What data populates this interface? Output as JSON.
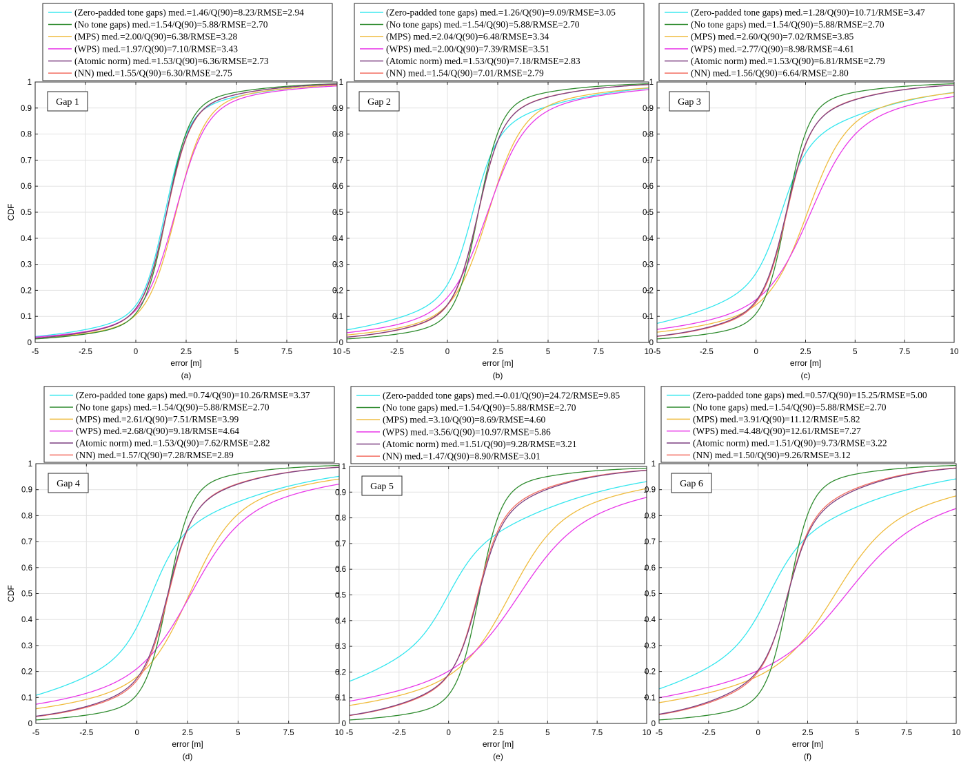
{
  "colors": {
    "zero_padded": "#33e6ee",
    "no_tone": "#2e8b2e",
    "mps": "#efbb3c",
    "wps": "#e836e8",
    "atomic": "#7c3f80",
    "nn": "#f26d60",
    "grid": "#e2e2e2"
  },
  "chart_data": [
    {
      "type": "line",
      "panel": "(a)",
      "annotation": "Gap 1",
      "xlabel": "error [m]",
      "ylabel": "CDF",
      "xlim": [
        -5,
        10
      ],
      "ylim": [
        0,
        1
      ],
      "xticks": [
        "-5",
        "-2.5",
        "0",
        "2.5",
        "5",
        "7.5",
        "10"
      ],
      "yticks": [
        "0",
        "0.1",
        "0.2",
        "0.3",
        "0.4",
        "0.5",
        "0.6",
        "0.7",
        "0.8",
        "0.9",
        "1"
      ],
      "grid": true,
      "legend": "top",
      "series": [
        {
          "name": "(Zero-padded tone gaps) med.=1.46/Q(90)=8.23/RMSE=2.94",
          "key": "zero_padded",
          "median": 1.46
        },
        {
          "name": "(No tone gaps) med.=1.54/Q(90)=5.88/RMSE=2.70",
          "key": "no_tone",
          "median": 1.54
        },
        {
          "name": "(MPS) med.=2.00/Q(90)=6.38/RMSE=3.28",
          "key": "mps",
          "median": 2.0
        },
        {
          "name": "(WPS) med.=1.97/Q(90)=7.10/RMSE=3.43",
          "key": "wps",
          "median": 1.97
        },
        {
          "name": "(Atomic norm) med.=1.53/Q(90)=6.36/RMSE=2.73",
          "key": "atomic",
          "median": 1.53
        },
        {
          "name": "(NN) med.=1.55/Q(90)=6.30/RMSE=2.75",
          "key": "nn",
          "median": 1.55
        }
      ]
    },
    {
      "type": "line",
      "panel": "(b)",
      "annotation": "Gap 2",
      "xlabel": "error [m]",
      "ylabel": "",
      "xlim": [
        -5,
        10
      ],
      "ylim": [
        0,
        1
      ],
      "xticks": [
        "-5",
        "-2.5",
        "0",
        "2.5",
        "5",
        "7.5",
        "10"
      ],
      "yticks": [
        "0",
        "0.1",
        "0.2",
        "0.3",
        "0.4",
        "0.5",
        "0.6",
        "0.7",
        "0.8",
        "0.9",
        "1"
      ],
      "grid": true,
      "legend": "top",
      "series": [
        {
          "name": "(Zero-padded tone gaps) med.=1.26/Q(90)=9.09/RMSE=3.05",
          "key": "zero_padded",
          "median": 1.26
        },
        {
          "name": "(No tone gaps) med.=1.54/Q(90)=5.88/RMSE=2.70",
          "key": "no_tone",
          "median": 1.54
        },
        {
          "name": "(MPS) med.=2.04/Q(90)=6.48/RMSE=3.34",
          "key": "mps",
          "median": 2.04
        },
        {
          "name": "(WPS) med.=2.00/Q(90)=7.39/RMSE=3.51",
          "key": "wps",
          "median": 2.0
        },
        {
          "name": "(Atomic norm) med.=1.53/Q(90)=7.18/RMSE=2.83",
          "key": "atomic",
          "median": 1.53
        },
        {
          "name": "(NN) med.=1.54/Q(90)=7.01/RMSE=2.79",
          "key": "nn",
          "median": 1.54
        }
      ]
    },
    {
      "type": "line",
      "panel": "(c)",
      "annotation": "Gap 3",
      "xlabel": "error [m]",
      "ylabel": "",
      "xlim": [
        -5,
        10
      ],
      "ylim": [
        0,
        1
      ],
      "xticks": [
        "-5",
        "-2.5",
        "0",
        "2.5",
        "5",
        "7.5",
        "10"
      ],
      "yticks": [
        "0",
        "0.1",
        "0.2",
        "0.3",
        "0.4",
        "0.5",
        "0.6",
        "0.7",
        "0.8",
        "0.9",
        "1"
      ],
      "grid": true,
      "legend": "top",
      "series": [
        {
          "name": "(Zero-padded tone gaps) med.=1.28/Q(90)=10.71/RMSE=3.47",
          "key": "zero_padded",
          "median": 1.28
        },
        {
          "name": "(No tone gaps) med.=1.54/Q(90)=5.88/RMSE=2.70",
          "key": "no_tone",
          "median": 1.54
        },
        {
          "name": "(MPS) med.=2.60/Q(90)=7.02/RMSE=3.85",
          "key": "mps",
          "median": 2.6
        },
        {
          "name": "(WPS) med.=2.77/Q(90)=8.98/RMSE=4.61",
          "key": "wps",
          "median": 2.77
        },
        {
          "name": "(Atomic norm) med.=1.53/Q(90)=6.81/RMSE=2.79",
          "key": "atomic",
          "median": 1.53
        },
        {
          "name": "(NN) med.=1.56/Q(90)=6.64/RMSE=2.80",
          "key": "nn",
          "median": 1.56
        }
      ]
    },
    {
      "type": "line",
      "panel": "(d)",
      "annotation": "Gap 4",
      "xlabel": "error [m]",
      "ylabel": "CDF",
      "xlim": [
        -5,
        10
      ],
      "ylim": [
        0,
        1
      ],
      "xticks": [
        "-5",
        "-2.5",
        "0",
        "2.5",
        "5",
        "7.5",
        "10"
      ],
      "yticks": [
        "0",
        "0.1",
        "0.2",
        "0.3",
        "0.4",
        "0.5",
        "0.6",
        "0.7",
        "0.8",
        "0.9",
        "1"
      ],
      "grid": true,
      "legend": "top",
      "series": [
        {
          "name": "(Zero-padded tone gaps) med.=0.74/Q(90)=10.26/RMSE=3.37",
          "key": "zero_padded",
          "median": 0.74
        },
        {
          "name": "(No tone gaps) med.=1.54/Q(90)=5.88/RMSE=2.70",
          "key": "no_tone",
          "median": 1.54
        },
        {
          "name": "(MPS) med.=2.61/Q(90)=7.51/RMSE=3.99",
          "key": "mps",
          "median": 2.61
        },
        {
          "name": "(WPS) med.=2.68/Q(90)=9.18/RMSE=4.64",
          "key": "wps",
          "median": 2.68
        },
        {
          "name": "(Atomic norm) med.=1.53/Q(90)=7.62/RMSE=2.82",
          "key": "atomic",
          "median": 1.53
        },
        {
          "name": "(NN) med.=1.57/Q(90)=7.28/RMSE=2.89",
          "key": "nn",
          "median": 1.57
        }
      ]
    },
    {
      "type": "line",
      "panel": "(e)",
      "annotation": "Gap 5",
      "xlabel": "error [m]",
      "ylabel": "",
      "xlim": [
        -5,
        10
      ],
      "ylim": [
        0,
        1
      ],
      "xticks": [
        "-5",
        "-2.5",
        "0",
        "2.5",
        "5",
        "7.5",
        "10"
      ],
      "yticks": [
        "0",
        "0.1",
        "0.2",
        "0.3",
        "0.4",
        "0.5",
        "0.6",
        "0.7",
        "0.8",
        "0.9",
        "1"
      ],
      "grid": true,
      "legend": "top",
      "series": [
        {
          "name": "(Zero-padded tone gaps) med.=-0.01/Q(90)=24.72/RMSE=9.85",
          "key": "zero_padded",
          "median": -0.01
        },
        {
          "name": "(No tone gaps) med.=1.54/Q(90)=5.88/RMSE=2.70",
          "key": "no_tone",
          "median": 1.54
        },
        {
          "name": "(MPS) med.=3.10/Q(90)=8.69/RMSE=4.60",
          "key": "mps",
          "median": 3.1
        },
        {
          "name": "(WPS) med.=3.56/Q(90)=10.97/RMSE=5.86",
          "key": "wps",
          "median": 3.56
        },
        {
          "name": "(Atomic norm) med.=1.51/Q(90)=9.28/RMSE=3.21",
          "key": "atomic",
          "median": 1.51
        },
        {
          "name": "(NN) med.=1.47/Q(90)=8.90/RMSE=3.01",
          "key": "nn",
          "median": 1.47
        }
      ]
    },
    {
      "type": "line",
      "panel": "(f)",
      "annotation": "Gap 6",
      "xlabel": "error [m]",
      "ylabel": "",
      "xlim": [
        -5,
        10
      ],
      "ylim": [
        0,
        1
      ],
      "xticks": [
        "-5",
        "-2.5",
        "0",
        "2.5",
        "5",
        "7.5",
        "10"
      ],
      "yticks": [
        "0",
        "0.1",
        "0.2",
        "0.3",
        "0.4",
        "0.5",
        "0.6",
        "0.7",
        "0.8",
        "0.9",
        "1"
      ],
      "grid": true,
      "legend": "top",
      "series": [
        {
          "name": "(Zero-padded tone gaps) med.=0.57/Q(90)=15.25/RMSE=5.00",
          "key": "zero_padded",
          "median": 0.57
        },
        {
          "name": "(No tone gaps) med.=1.54/Q(90)=5.88/RMSE=2.70",
          "key": "no_tone",
          "median": 1.54
        },
        {
          "name": "(MPS) med.=3.91/Q(90)=11.12/RMSE=5.82",
          "key": "mps",
          "median": 3.91
        },
        {
          "name": "(WPS) med.=4.48/Q(90)=12.61/RMSE=7.27",
          "key": "wps",
          "median": 4.48
        },
        {
          "name": "(Atomic norm) med.=1.51/Q(90)=9.73/RMSE=3.22",
          "key": "atomic",
          "median": 1.51
        },
        {
          "name": "(NN) med.=1.50/Q(90)=9.26/RMSE=3.12",
          "key": "nn",
          "median": 1.5
        }
      ]
    }
  ]
}
